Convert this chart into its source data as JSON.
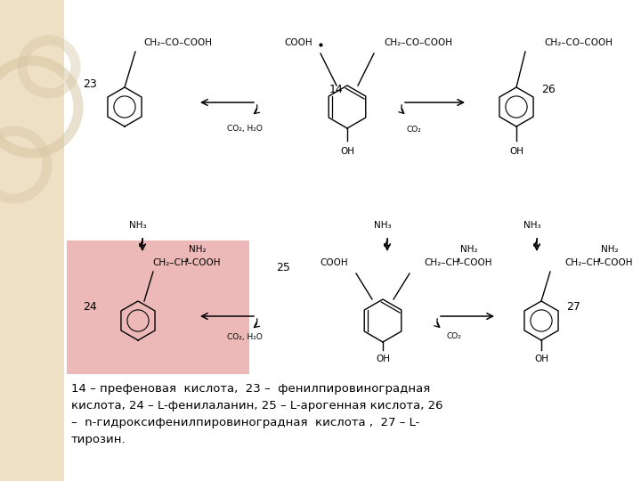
{
  "background_color": "#ffffff",
  "left_panel_color": "#ede0c4",
  "highlight_box_color": "#e8a0a0",
  "fig_width": 7.2,
  "fig_height": 5.4,
  "dpi": 100,
  "caption_line1": "14 – префеновая  кислота,  23 –  фенилпировиноградная",
  "caption_line2": "кислота, 24 – L-фенилаланин, 25 – L-арогенная кислота, 26",
  "caption_line3": "–  n-гидроксифенилпировиноградная  кислота ,  27 – L-",
  "caption_line4": "тирозин."
}
